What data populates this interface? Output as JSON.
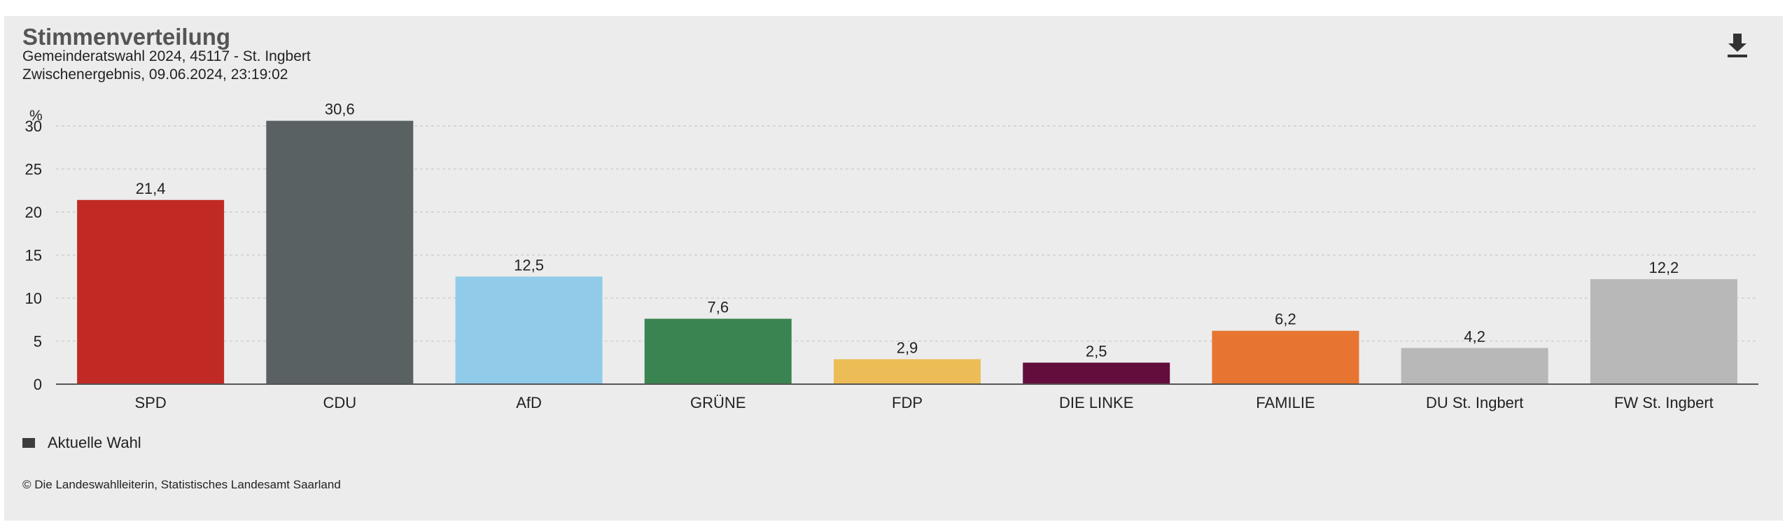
{
  "header": {
    "title": "Stimmenverteilung",
    "subtitle_1": "Gemeinderatswahl 2024, 45117 - St. Ingbert",
    "subtitle_2": "Zwischenergebnis, 09.06.2024, 23:19:02"
  },
  "toolbar": {
    "download_icon": "download-icon"
  },
  "colors": {
    "background": "#ececec",
    "gridline": "#cfcfcf",
    "axis": "#555555",
    "title": "#555555"
  },
  "chart_data": {
    "type": "bar",
    "ylabel": "%",
    "ylim": [
      0,
      30
    ],
    "yticks": [
      0,
      5,
      10,
      15,
      20,
      25,
      30
    ],
    "grid": true,
    "categories": [
      "SPD",
      "CDU",
      "AfD",
      "GRÜNE",
      "FDP",
      "DIE LINKE",
      "FAMILIE",
      "DU St. Ingbert",
      "FW St. Ingbert"
    ],
    "series": [
      {
        "name": "Aktuelle Wahl",
        "values": [
          21.4,
          30.6,
          12.5,
          7.6,
          2.9,
          2.5,
          6.2,
          4.2,
          12.2
        ],
        "value_labels": [
          "21,4",
          "30,6",
          "12,5",
          "7,6",
          "2,9",
          "2,5",
          "6,2",
          "4,2",
          "12,2"
        ],
        "colors": [
          "#c12a24",
          "#5a6163",
          "#91cbea",
          "#3a8451",
          "#ecbd57",
          "#630d3c",
          "#e77531",
          "#b8b8b8",
          "#b8b8b8"
        ]
      }
    ],
    "legend_placement": "bottom-left"
  },
  "legend": {
    "label": "Aktuelle Wahl",
    "swatch_color": "#3d3d3d"
  },
  "footer": {
    "source": "© Die Landeswahlleiterin, Statistisches Landesamt Saarland"
  }
}
